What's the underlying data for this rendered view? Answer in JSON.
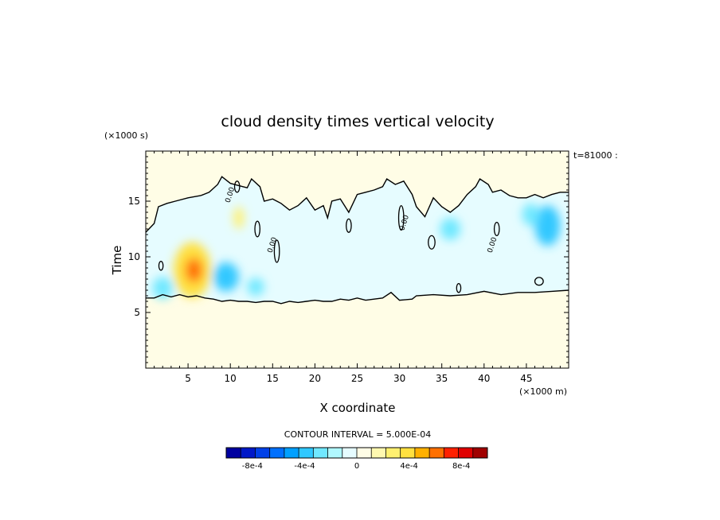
{
  "chart_data": {
    "type": "heatmap",
    "title": "cloud density times vertical velocity",
    "xlabel": "X coordinate",
    "ylabel": "Time",
    "x_multiplier": "(×1000 m)",
    "y_multiplier": "(×1000 s)",
    "time_stamp": "t=81000 :",
    "xlim": [
      0,
      50
    ],
    "ylim": [
      0,
      19.5
    ],
    "x_ticks": [
      5,
      10,
      15,
      20,
      25,
      30,
      35,
      40,
      45
    ],
    "x_tick_labels": [
      "5",
      "10",
      "15",
      "20",
      "25",
      "30",
      "35",
      "40",
      "45"
    ],
    "y_ticks": [
      5,
      10,
      15
    ],
    "y_tick_labels": [
      "5",
      "10",
      "15"
    ],
    "contour_label": "0.00",
    "contour_interval_text": "CONTOUR INTERVAL = 5.000E-04",
    "colorbar": {
      "min": -0.001,
      "max": 0.001,
      "colors": [
        "#0000a0",
        "#0018c8",
        "#0040e8",
        "#0070ff",
        "#00a0ff",
        "#30c8ff",
        "#70e8ff",
        "#b0f8ff",
        "#e6fcff",
        "#fffde6",
        "#fff8b0",
        "#fff070",
        "#ffe040",
        "#ffb000",
        "#ff7000",
        "#ff2000",
        "#e00000",
        "#a00000"
      ],
      "tick_values": [
        -0.0008,
        -0.0004,
        0,
        0.0004,
        0.0008
      ],
      "tick_labels": [
        "-8e-4",
        "-4e-4",
        "0",
        "4e-4",
        "8e-4"
      ]
    },
    "background_color": "#fffde6",
    "cloud_region": {
      "color": "#e6fcff",
      "upper_boundary": [
        [
          0,
          12.2
        ],
        [
          1,
          13
        ],
        [
          1.5,
          14.5
        ],
        [
          2.5,
          14.8
        ],
        [
          3.5,
          15
        ],
        [
          5,
          15.3
        ],
        [
          6.5,
          15.5
        ],
        [
          7.5,
          15.8
        ],
        [
          8.5,
          16.5
        ],
        [
          9,
          17.2
        ],
        [
          10,
          16.6
        ],
        [
          11,
          16.4
        ],
        [
          12,
          16.2
        ],
        [
          12.5,
          17
        ],
        [
          13.5,
          16.3
        ],
        [
          14,
          15
        ],
        [
          15,
          15.2
        ],
        [
          16,
          14.8
        ],
        [
          17,
          14.2
        ],
        [
          18,
          14.6
        ],
        [
          19,
          15.3
        ],
        [
          20,
          14.2
        ],
        [
          21,
          14.6
        ],
        [
          21.5,
          13.5
        ],
        [
          22,
          15
        ],
        [
          23,
          15.2
        ],
        [
          24,
          14
        ],
        [
          25,
          15.6
        ],
        [
          26,
          15.8
        ],
        [
          27,
          16
        ],
        [
          28,
          16.3
        ],
        [
          28.5,
          17
        ],
        [
          29.5,
          16.5
        ],
        [
          30.5,
          16.8
        ],
        [
          31.5,
          15.6
        ],
        [
          32,
          14.5
        ],
        [
          33,
          13.6
        ],
        [
          34,
          15.3
        ],
        [
          35,
          14.5
        ],
        [
          36,
          14
        ],
        [
          37,
          14.6
        ],
        [
          38,
          15.6
        ],
        [
          39,
          16.3
        ],
        [
          39.5,
          17
        ],
        [
          40.5,
          16.5
        ],
        [
          41,
          15.8
        ],
        [
          42,
          16
        ],
        [
          43,
          15.5
        ],
        [
          44,
          15.3
        ],
        [
          45,
          15.3
        ],
        [
          46,
          15.6
        ],
        [
          47,
          15.3
        ],
        [
          48,
          15.6
        ],
        [
          49,
          15.8
        ],
        [
          50,
          15.8
        ]
      ],
      "lower_boundary": [
        [
          50,
          7
        ],
        [
          48,
          6.9
        ],
        [
          46,
          6.8
        ],
        [
          44,
          6.8
        ],
        [
          42,
          6.6
        ],
        [
          40,
          6.9
        ],
        [
          38,
          6.6
        ],
        [
          36,
          6.5
        ],
        [
          34,
          6.6
        ],
        [
          32,
          6.5
        ],
        [
          31.5,
          6.2
        ],
        [
          30,
          6.1
        ],
        [
          29,
          6.8
        ],
        [
          28,
          6.3
        ],
        [
          27,
          6.2
        ],
        [
          26,
          6.1
        ],
        [
          25,
          6.3
        ],
        [
          24,
          6.1
        ],
        [
          23,
          6.2
        ],
        [
          22,
          6
        ],
        [
          21,
          6
        ],
        [
          20,
          6.1
        ],
        [
          19,
          6
        ],
        [
          18,
          5.9
        ],
        [
          17,
          6
        ],
        [
          16,
          5.8
        ],
        [
          15,
          6
        ],
        [
          14,
          6
        ],
        [
          13,
          5.9
        ],
        [
          12,
          6
        ],
        [
          11,
          6
        ],
        [
          10,
          6.1
        ],
        [
          9,
          6
        ],
        [
          8,
          6.2
        ],
        [
          7,
          6.3
        ],
        [
          6,
          6.5
        ],
        [
          5,
          6.4
        ],
        [
          4,
          6.6
        ],
        [
          3,
          6.4
        ],
        [
          2,
          6.6
        ],
        [
          1,
          6.3
        ],
        [
          0,
          6.3
        ]
      ]
    },
    "anomalies": [
      {
        "x": 5.5,
        "y": 8.8,
        "rx": 2.2,
        "ry": 2.5,
        "value": 0.00035
      },
      {
        "x": 5.7,
        "y": 8.8,
        "rx": 1.0,
        "ry": 1.1,
        "value": 0.0006
      },
      {
        "x": 11,
        "y": 13.5,
        "rx": 0.6,
        "ry": 1.0,
        "value": 0.00025
      },
      {
        "x": 2.0,
        "y": 7.2,
        "rx": 1.2,
        "ry": 1.0,
        "value": -0.0003
      },
      {
        "x": 9.5,
        "y": 8.2,
        "rx": 1.5,
        "ry": 1.3,
        "value": -0.00035
      },
      {
        "x": 13,
        "y": 7.3,
        "rx": 1.0,
        "ry": 0.8,
        "value": -0.0003
      },
      {
        "x": 47.5,
        "y": 12.8,
        "rx": 1.5,
        "ry": 1.8,
        "value": -0.00035
      },
      {
        "x": 45.5,
        "y": 13.8,
        "rx": 1.0,
        "ry": 1.0,
        "value": -0.0003
      },
      {
        "x": 36,
        "y": 12.5,
        "rx": 1.2,
        "ry": 1.0,
        "value": -0.00025
      }
    ],
    "small_contours": [
      {
        "x": 1.8,
        "y": 9.2,
        "rx": 0.25,
        "ry": 0.4
      },
      {
        "x": 10.8,
        "y": 16.3,
        "rx": 0.3,
        "ry": 0.5
      },
      {
        "x": 13.2,
        "y": 12.5,
        "rx": 0.3,
        "ry": 0.7
      },
      {
        "x": 15.5,
        "y": 10.5,
        "rx": 0.3,
        "ry": 1.0
      },
      {
        "x": 24,
        "y": 12.8,
        "rx": 0.3,
        "ry": 0.6
      },
      {
        "x": 30.2,
        "y": 13.5,
        "rx": 0.3,
        "ry": 1.1
      },
      {
        "x": 33.8,
        "y": 11.3,
        "rx": 0.4,
        "ry": 0.6
      },
      {
        "x": 37,
        "y": 7.2,
        "rx": 0.25,
        "ry": 0.4
      },
      {
        "x": 41.5,
        "y": 12.5,
        "rx": 0.3,
        "ry": 0.6
      },
      {
        "x": 46.5,
        "y": 7.8,
        "rx": 0.5,
        "ry": 0.35
      }
    ],
    "contour_label_positions": [
      [
        10.2,
        15.5
      ],
      [
        15.2,
        11
      ],
      [
        30.8,
        13
      ],
      [
        41.2,
        11
      ]
    ]
  }
}
